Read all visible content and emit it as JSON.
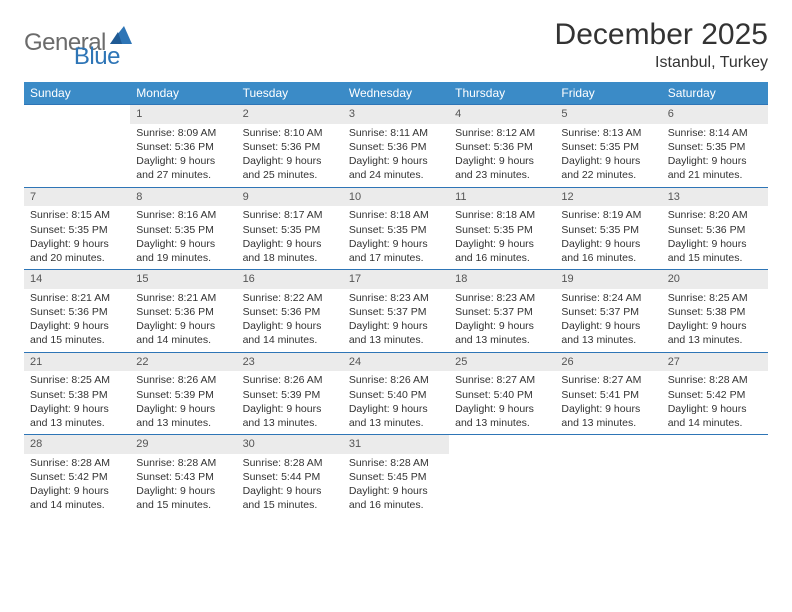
{
  "brand": {
    "name1": "General",
    "name2": "Blue"
  },
  "title": "December 2025",
  "location": "Istanbul, Turkey",
  "colors": {
    "header_bg": "#3b8bc7",
    "header_fg": "#ffffff",
    "rule": "#2e75b6",
    "daynum_bg": "#ebebeb",
    "text": "#333333",
    "logo_gray": "#6b6b6b",
    "logo_blue": "#2e75b6",
    "background": "#ffffff"
  },
  "typography": {
    "title_fontsize_pt": 22,
    "location_fontsize_pt": 12,
    "header_fontsize_pt": 9,
    "cell_fontsize_pt": 8,
    "font_family": "Arial"
  },
  "layout": {
    "cols": 7,
    "rows": 5,
    "first_weekday": "Sunday"
  },
  "weekdays": [
    "Sunday",
    "Monday",
    "Tuesday",
    "Wednesday",
    "Thursday",
    "Friday",
    "Saturday"
  ],
  "days": [
    {
      "n": "",
      "sr": "",
      "ss": "",
      "dl1": "",
      "dl2": ""
    },
    {
      "n": "1",
      "sr": "Sunrise: 8:09 AM",
      "ss": "Sunset: 5:36 PM",
      "dl1": "Daylight: 9 hours",
      "dl2": "and 27 minutes."
    },
    {
      "n": "2",
      "sr": "Sunrise: 8:10 AM",
      "ss": "Sunset: 5:36 PM",
      "dl1": "Daylight: 9 hours",
      "dl2": "and 25 minutes."
    },
    {
      "n": "3",
      "sr": "Sunrise: 8:11 AM",
      "ss": "Sunset: 5:36 PM",
      "dl1": "Daylight: 9 hours",
      "dl2": "and 24 minutes."
    },
    {
      "n": "4",
      "sr": "Sunrise: 8:12 AM",
      "ss": "Sunset: 5:36 PM",
      "dl1": "Daylight: 9 hours",
      "dl2": "and 23 minutes."
    },
    {
      "n": "5",
      "sr": "Sunrise: 8:13 AM",
      "ss": "Sunset: 5:35 PM",
      "dl1": "Daylight: 9 hours",
      "dl2": "and 22 minutes."
    },
    {
      "n": "6",
      "sr": "Sunrise: 8:14 AM",
      "ss": "Sunset: 5:35 PM",
      "dl1": "Daylight: 9 hours",
      "dl2": "and 21 minutes."
    },
    {
      "n": "7",
      "sr": "Sunrise: 8:15 AM",
      "ss": "Sunset: 5:35 PM",
      "dl1": "Daylight: 9 hours",
      "dl2": "and 20 minutes."
    },
    {
      "n": "8",
      "sr": "Sunrise: 8:16 AM",
      "ss": "Sunset: 5:35 PM",
      "dl1": "Daylight: 9 hours",
      "dl2": "and 19 minutes."
    },
    {
      "n": "9",
      "sr": "Sunrise: 8:17 AM",
      "ss": "Sunset: 5:35 PM",
      "dl1": "Daylight: 9 hours",
      "dl2": "and 18 minutes."
    },
    {
      "n": "10",
      "sr": "Sunrise: 8:18 AM",
      "ss": "Sunset: 5:35 PM",
      "dl1": "Daylight: 9 hours",
      "dl2": "and 17 minutes."
    },
    {
      "n": "11",
      "sr": "Sunrise: 8:18 AM",
      "ss": "Sunset: 5:35 PM",
      "dl1": "Daylight: 9 hours",
      "dl2": "and 16 minutes."
    },
    {
      "n": "12",
      "sr": "Sunrise: 8:19 AM",
      "ss": "Sunset: 5:35 PM",
      "dl1": "Daylight: 9 hours",
      "dl2": "and 16 minutes."
    },
    {
      "n": "13",
      "sr": "Sunrise: 8:20 AM",
      "ss": "Sunset: 5:36 PM",
      "dl1": "Daylight: 9 hours",
      "dl2": "and 15 minutes."
    },
    {
      "n": "14",
      "sr": "Sunrise: 8:21 AM",
      "ss": "Sunset: 5:36 PM",
      "dl1": "Daylight: 9 hours",
      "dl2": "and 15 minutes."
    },
    {
      "n": "15",
      "sr": "Sunrise: 8:21 AM",
      "ss": "Sunset: 5:36 PM",
      "dl1": "Daylight: 9 hours",
      "dl2": "and 14 minutes."
    },
    {
      "n": "16",
      "sr": "Sunrise: 8:22 AM",
      "ss": "Sunset: 5:36 PM",
      "dl1": "Daylight: 9 hours",
      "dl2": "and 14 minutes."
    },
    {
      "n": "17",
      "sr": "Sunrise: 8:23 AM",
      "ss": "Sunset: 5:37 PM",
      "dl1": "Daylight: 9 hours",
      "dl2": "and 13 minutes."
    },
    {
      "n": "18",
      "sr": "Sunrise: 8:23 AM",
      "ss": "Sunset: 5:37 PM",
      "dl1": "Daylight: 9 hours",
      "dl2": "and 13 minutes."
    },
    {
      "n": "19",
      "sr": "Sunrise: 8:24 AM",
      "ss": "Sunset: 5:37 PM",
      "dl1": "Daylight: 9 hours",
      "dl2": "and 13 minutes."
    },
    {
      "n": "20",
      "sr": "Sunrise: 8:25 AM",
      "ss": "Sunset: 5:38 PM",
      "dl1": "Daylight: 9 hours",
      "dl2": "and 13 minutes."
    },
    {
      "n": "21",
      "sr": "Sunrise: 8:25 AM",
      "ss": "Sunset: 5:38 PM",
      "dl1": "Daylight: 9 hours",
      "dl2": "and 13 minutes."
    },
    {
      "n": "22",
      "sr": "Sunrise: 8:26 AM",
      "ss": "Sunset: 5:39 PM",
      "dl1": "Daylight: 9 hours",
      "dl2": "and 13 minutes."
    },
    {
      "n": "23",
      "sr": "Sunrise: 8:26 AM",
      "ss": "Sunset: 5:39 PM",
      "dl1": "Daylight: 9 hours",
      "dl2": "and 13 minutes."
    },
    {
      "n": "24",
      "sr": "Sunrise: 8:26 AM",
      "ss": "Sunset: 5:40 PM",
      "dl1": "Daylight: 9 hours",
      "dl2": "and 13 minutes."
    },
    {
      "n": "25",
      "sr": "Sunrise: 8:27 AM",
      "ss": "Sunset: 5:40 PM",
      "dl1": "Daylight: 9 hours",
      "dl2": "and 13 minutes."
    },
    {
      "n": "26",
      "sr": "Sunrise: 8:27 AM",
      "ss": "Sunset: 5:41 PM",
      "dl1": "Daylight: 9 hours",
      "dl2": "and 13 minutes."
    },
    {
      "n": "27",
      "sr": "Sunrise: 8:28 AM",
      "ss": "Sunset: 5:42 PM",
      "dl1": "Daylight: 9 hours",
      "dl2": "and 14 minutes."
    },
    {
      "n": "28",
      "sr": "Sunrise: 8:28 AM",
      "ss": "Sunset: 5:42 PM",
      "dl1": "Daylight: 9 hours",
      "dl2": "and 14 minutes."
    },
    {
      "n": "29",
      "sr": "Sunrise: 8:28 AM",
      "ss": "Sunset: 5:43 PM",
      "dl1": "Daylight: 9 hours",
      "dl2": "and 15 minutes."
    },
    {
      "n": "30",
      "sr": "Sunrise: 8:28 AM",
      "ss": "Sunset: 5:44 PM",
      "dl1": "Daylight: 9 hours",
      "dl2": "and 15 minutes."
    },
    {
      "n": "31",
      "sr": "Sunrise: 8:28 AM",
      "ss": "Sunset: 5:45 PM",
      "dl1": "Daylight: 9 hours",
      "dl2": "and 16 minutes."
    },
    {
      "n": "",
      "sr": "",
      "ss": "",
      "dl1": "",
      "dl2": ""
    },
    {
      "n": "",
      "sr": "",
      "ss": "",
      "dl1": "",
      "dl2": ""
    },
    {
      "n": "",
      "sr": "",
      "ss": "",
      "dl1": "",
      "dl2": ""
    }
  ]
}
